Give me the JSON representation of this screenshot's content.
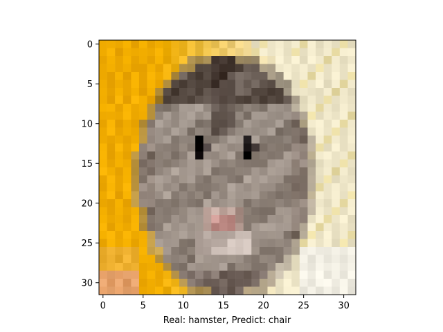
{
  "figure": {
    "xlabel": "Real: hamster, Predict: chair",
    "image_grid": [
      32,
      32
    ],
    "xlim": [
      -0.5,
      31.5
    ],
    "ylim": [
      31.5,
      -0.5
    ],
    "xticks": [
      {
        "value": 0,
        "label": "0"
      },
      {
        "value": 5,
        "label": "5"
      },
      {
        "value": 10,
        "label": "10"
      },
      {
        "value": 15,
        "label": "15"
      },
      {
        "value": 20,
        "label": "20"
      },
      {
        "value": 25,
        "label": "25"
      },
      {
        "value": 30,
        "label": "30"
      }
    ],
    "yticks": [
      {
        "value": 0,
        "label": "0"
      },
      {
        "value": 5,
        "label": "5"
      },
      {
        "value": 10,
        "label": "10"
      },
      {
        "value": 15,
        "label": "15"
      },
      {
        "value": 20,
        "label": "20"
      },
      {
        "value": 25,
        "label": "25"
      },
      {
        "value": 30,
        "label": "30"
      }
    ],
    "image_subject": "hamster-pixel-image",
    "colors": {
      "left_background": "#f7b200",
      "right_background": "#f5edcf",
      "fur": "#9a8f86",
      "dark_fur": "#4d4039",
      "face": "#b9aca2",
      "nose": "#d9a6a0",
      "eye": "#161112",
      "axis": "#000000"
    }
  }
}
